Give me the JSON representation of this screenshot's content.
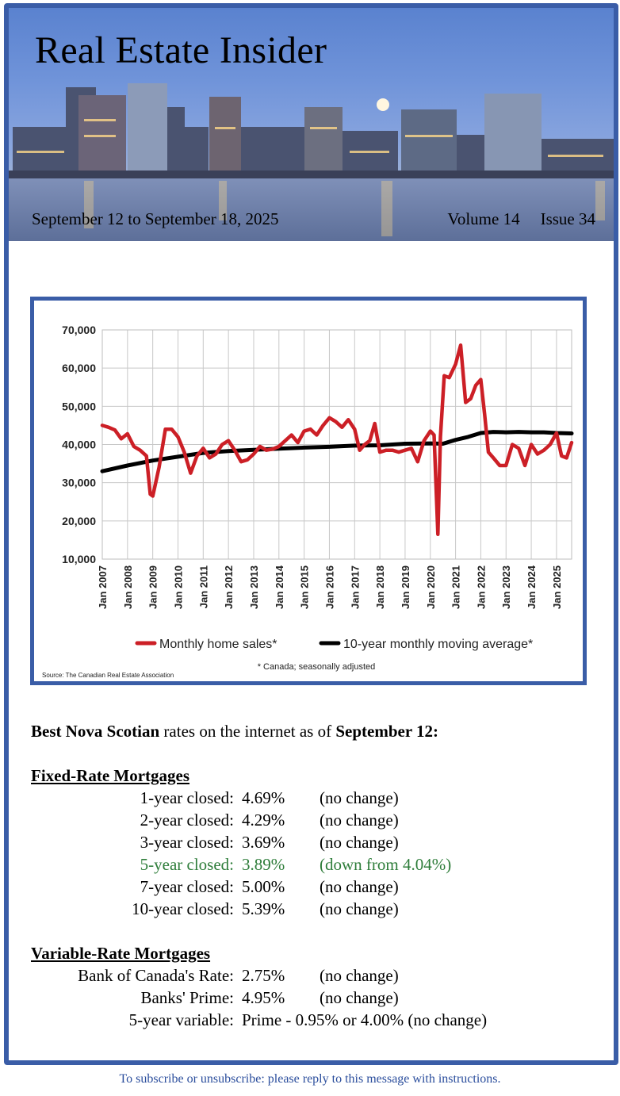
{
  "header": {
    "title": "Real Estate Insider",
    "dates": "September 12 to September 18, 2025",
    "volume": "Volume 14",
    "issue": "Issue 34"
  },
  "chart_data": {
    "type": "line",
    "title": "",
    "ylim": [
      10000,
      70000
    ],
    "yticks": [
      10000,
      20000,
      30000,
      40000,
      50000,
      60000,
      70000
    ],
    "ytick_labels": [
      "10,000",
      "20,000",
      "30,000",
      "40,000",
      "50,000",
      "60,000",
      "70,000"
    ],
    "xlim": [
      2007,
      2025.6
    ],
    "xtick_labels": [
      "Jan 2007",
      "Jan 2008",
      "Jan 2009",
      "Jan 2010",
      "Jan 2011",
      "Jan 2012",
      "Jan 2013",
      "Jan 2014",
      "Jan 2015",
      "Jan 2016",
      "Jan 2017",
      "Jan 2018",
      "Jan 2019",
      "Jan 2020",
      "Jan 2021",
      "Jan 2022",
      "Jan 2023",
      "Jan 2024",
      "Jan 2025"
    ],
    "grid": true,
    "legend": "bottom",
    "note": "* Canada; seasonally adjusted",
    "source": "Source: The Canadian Real Estate Association",
    "series": [
      {
        "name": "Monthly home sales*",
        "color": "#cc1f26",
        "x": [
          2007.0,
          2007.25,
          2007.5,
          2007.75,
          2008.0,
          2008.25,
          2008.5,
          2008.75,
          2008.9,
          2009.0,
          2009.25,
          2009.5,
          2009.75,
          2010.0,
          2010.25,
          2010.5,
          2010.75,
          2011.0,
          2011.25,
          2011.5,
          2011.75,
          2012.0,
          2012.25,
          2012.5,
          2012.75,
          2013.0,
          2013.25,
          2013.5,
          2013.75,
          2014.0,
          2014.25,
          2014.5,
          2014.75,
          2015.0,
          2015.25,
          2015.5,
          2015.75,
          2016.0,
          2016.25,
          2016.5,
          2016.75,
          2017.0,
          2017.2,
          2017.4,
          2017.6,
          2017.8,
          2018.0,
          2018.25,
          2018.5,
          2018.75,
          2019.0,
          2019.25,
          2019.5,
          2019.75,
          2020.0,
          2020.15,
          2020.3,
          2020.4,
          2020.55,
          2020.75,
          2021.0,
          2021.2,
          2021.4,
          2021.6,
          2021.8,
          2022.0,
          2022.15,
          2022.3,
          2022.5,
          2022.75,
          2023.0,
          2023.25,
          2023.5,
          2023.75,
          2024.0,
          2024.25,
          2024.5,
          2024.75,
          2025.0,
          2025.2,
          2025.4,
          2025.6
        ],
        "values": [
          45000,
          44500,
          43800,
          41500,
          42800,
          39500,
          38500,
          37000,
          27000,
          26500,
          34000,
          44000,
          44000,
          42000,
          38000,
          32500,
          37000,
          39000,
          36500,
          37500,
          40000,
          41000,
          38500,
          35500,
          36000,
          37500,
          39500,
          38500,
          38800,
          39500,
          41000,
          42500,
          40500,
          43500,
          44000,
          42500,
          45000,
          47000,
          46000,
          44500,
          46500,
          44000,
          38500,
          40000,
          41000,
          45500,
          38000,
          38500,
          38500,
          38000,
          38500,
          39000,
          35500,
          41000,
          43500,
          42500,
          16500,
          42000,
          58000,
          57500,
          61000,
          66000,
          51000,
          52000,
          55500,
          57000,
          48000,
          38000,
          36500,
          34500,
          34500,
          40000,
          39000,
          34500,
          40000,
          37500,
          38500,
          40000,
          43000,
          37000,
          36500,
          40500
        ]
      },
      {
        "name": "10-year monthly moving average*",
        "color": "#000000",
        "x": [
          2007.0,
          2008.0,
          2009.0,
          2010.0,
          2011.0,
          2012.0,
          2013.0,
          2014.0,
          2015.0,
          2016.0,
          2017.0,
          2018.0,
          2019.0,
          2020.0,
          2020.5,
          2021.0,
          2021.5,
          2022.0,
          2022.5,
          2023.0,
          2023.5,
          2024.0,
          2024.5,
          2025.0,
          2025.6
        ],
        "values": [
          33000,
          34500,
          35800,
          36800,
          37800,
          38300,
          38600,
          38900,
          39200,
          39400,
          39700,
          39800,
          40200,
          40300,
          40200,
          41200,
          42000,
          43000,
          43300,
          43200,
          43300,
          43200,
          43200,
          43000,
          42900
        ]
      }
    ]
  },
  "rates": {
    "intro_bold1": "Best Nova Scotian",
    "intro_text": " rates on the internet as of ",
    "intro_bold2": "September 12:",
    "fixed_heading": "Fixed-Rate Mortgages",
    "fixed": [
      {
        "term": "1-year closed:",
        "rate": "4.69%",
        "change": "(no change)"
      },
      {
        "term": "2-year closed:",
        "rate": "4.29%",
        "change": "(no change)"
      },
      {
        "term": "3-year closed:",
        "rate": "3.69%",
        "change": "(no change)"
      },
      {
        "term": "5-year closed:",
        "rate": "3.89%",
        "change": "(down from 4.04%)"
      },
      {
        "term": "7-year closed:",
        "rate": "5.00%",
        "change": "(no change)"
      },
      {
        "term": "10-year closed:",
        "rate": "5.39%",
        "change": "(no change)"
      }
    ],
    "highlight_color": "#2e7d3a",
    "variable_heading": "Variable-Rate Mortgages",
    "variable": [
      {
        "term": "Bank of Canada's Rate:",
        "rate": "2.75%",
        "change": "(no change)"
      },
      {
        "term": "Banks' Prime:",
        "rate": "4.95%",
        "change": "(no change)"
      },
      {
        "term": "5-year variable:",
        "rate": "Prime - 0.95% or 4.00% (no change)",
        "change": ""
      }
    ]
  },
  "footer": {
    "text": "To subscribe or unsubscribe: please reply to this message with instructions."
  }
}
